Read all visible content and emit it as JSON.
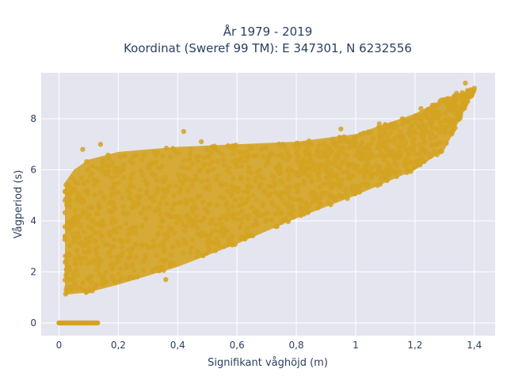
{
  "chart_data": {
    "type": "scatter",
    "title_line1": "År 1979 - 2019",
    "title_line2": "Koordinat (Sweref 99 TM): E 347301, N 6232556",
    "xlabel": "Signifikant våghöjd (m)",
    "ylabel": "Vågperiod (s)",
    "xlim": [
      -0.06,
      1.47
    ],
    "ylim": [
      -0.5,
      9.8
    ],
    "x_ticks": [
      0,
      0.2,
      0.4,
      0.6,
      0.8,
      1,
      1.2,
      1.4
    ],
    "x_tick_labels": [
      "0",
      "0,2",
      "0,4",
      "0,6",
      "0,8",
      "1",
      "1,2",
      "1,4"
    ],
    "y_ticks": [
      0,
      2,
      4,
      6,
      8
    ],
    "y_tick_labels": [
      "0",
      "2",
      "4",
      "6",
      "8"
    ],
    "grid": true,
    "colors": {
      "marker": "#d4a321",
      "plot_bg": "#e5e5ef",
      "grid": "#ffffff"
    },
    "series": [
      {
        "point_cloud": {
          "lower_envelope": [
            [
              0.02,
              1.1
            ],
            [
              0.1,
              1.2
            ],
            [
              0.2,
              1.5
            ],
            [
              0.4,
              2.2
            ],
            [
              0.6,
              3.1
            ],
            [
              0.8,
              4.1
            ],
            [
              1.0,
              5.0
            ],
            [
              1.2,
              6.0
            ],
            [
              1.3,
              6.8
            ],
            [
              1.4,
              9.1
            ]
          ],
          "upper_envelope": [
            [
              0.02,
              5.5
            ],
            [
              0.05,
              6.0
            ],
            [
              0.1,
              6.4
            ],
            [
              0.2,
              6.7
            ],
            [
              0.4,
              6.9
            ],
            [
              0.6,
              7.0
            ],
            [
              0.8,
              7.1
            ],
            [
              1.0,
              7.4
            ],
            [
              1.2,
              8.2
            ],
            [
              1.3,
              8.8
            ],
            [
              1.4,
              9.2
            ]
          ],
          "zero_band": {
            "x_from": 0.0,
            "x_to": 0.13,
            "y": 0
          }
        },
        "outliers": [
          [
            0.08,
            6.8
          ],
          [
            0.14,
            7.0
          ],
          [
            0.42,
            7.5
          ],
          [
            0.48,
            7.1
          ],
          [
            1.22,
            8.4
          ],
          [
            1.31,
            8.6
          ],
          [
            1.37,
            9.4
          ],
          [
            1.34,
            9.0
          ],
          [
            1.08,
            7.8
          ],
          [
            0.95,
            7.6
          ],
          [
            0.16,
            1.6
          ],
          [
            0.36,
            1.7
          ]
        ]
      }
    ]
  }
}
